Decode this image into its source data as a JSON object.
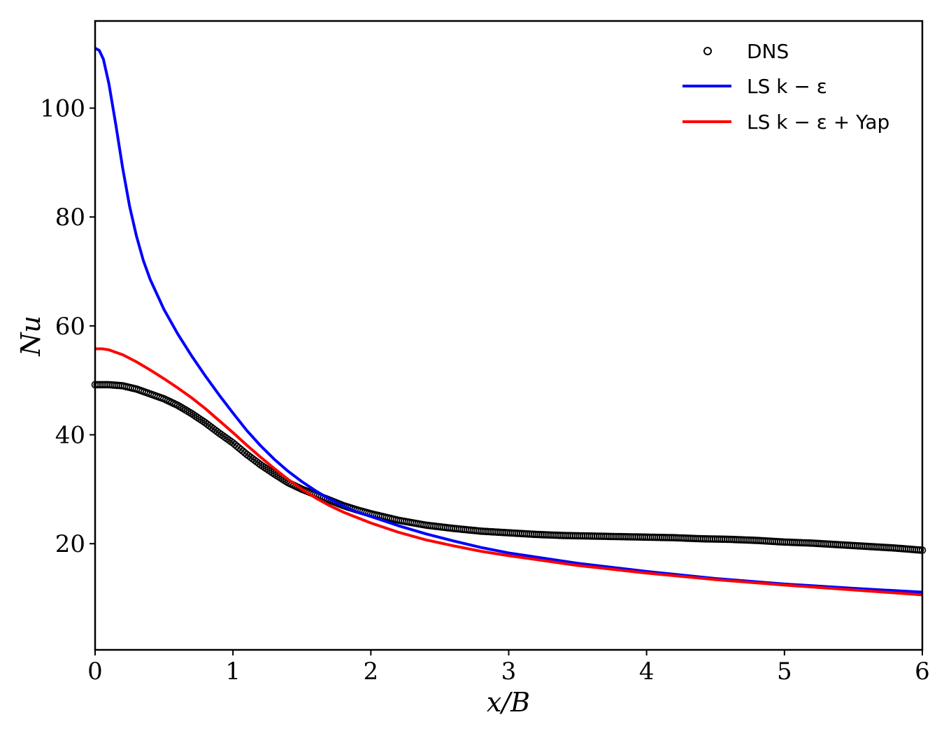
{
  "chart_data": {
    "type": "line",
    "xlabel": "x/B",
    "ylabel": "Nu",
    "xlim": [
      0,
      6
    ],
    "ylim": [
      0.5,
      116
    ],
    "x_ticks": [
      0,
      1,
      2,
      3,
      4,
      5,
      6
    ],
    "y_ticks": [
      20,
      40,
      60,
      80,
      100
    ],
    "grid": false,
    "legend_position": "top-right",
    "series": [
      {
        "name": "DNS",
        "style": "markers",
        "marker": "open-circle",
        "color": "#000000",
        "x": [
          0.0,
          0.1,
          0.2,
          0.3,
          0.4,
          0.5,
          0.6,
          0.7,
          0.8,
          0.9,
          1.0,
          1.1,
          1.2,
          1.3,
          1.4,
          1.5,
          1.6,
          1.7,
          1.8,
          1.9,
          2.0,
          2.1,
          2.2,
          2.4,
          2.6,
          2.8,
          3.0,
          3.2,
          3.4,
          3.6,
          3.8,
          4.0,
          4.2,
          4.4,
          4.6,
          4.8,
          5.0,
          5.2,
          5.4,
          5.6,
          5.8,
          6.0
        ],
        "y": [
          49.2,
          49.2,
          49.0,
          48.4,
          47.5,
          46.6,
          45.4,
          43.9,
          42.2,
          40.3,
          38.5,
          36.4,
          34.5,
          32.8,
          31.2,
          30.0,
          29.0,
          28.0,
          27.0,
          26.2,
          25.5,
          24.9,
          24.3,
          23.4,
          22.8,
          22.3,
          22.0,
          21.7,
          21.5,
          21.4,
          21.3,
          21.2,
          21.1,
          20.9,
          20.8,
          20.6,
          20.3,
          20.1,
          19.8,
          19.5,
          19.2,
          18.8
        ]
      },
      {
        "name": "LS k − ε",
        "style": "line",
        "color": "#0000ff",
        "x": [
          0.0,
          0.03,
          0.06,
          0.1,
          0.15,
          0.2,
          0.25,
          0.3,
          0.35,
          0.4,
          0.5,
          0.6,
          0.7,
          0.8,
          0.9,
          1.0,
          1.1,
          1.2,
          1.3,
          1.4,
          1.5,
          1.6,
          1.7,
          1.8,
          1.9,
          2.0,
          2.2,
          2.4,
          2.6,
          2.8,
          3.0,
          3.5,
          4.0,
          4.5,
          5.0,
          5.5,
          6.0
        ],
        "y": [
          111.0,
          110.6,
          109.0,
          104.5,
          97.0,
          89.0,
          82.0,
          76.5,
          72.0,
          68.5,
          63.0,
          58.5,
          54.5,
          50.8,
          47.3,
          44.0,
          40.8,
          38.0,
          35.5,
          33.3,
          31.4,
          29.7,
          28.2,
          26.9,
          25.8,
          25.0,
          23.3,
          21.8,
          20.5,
          19.3,
          18.3,
          16.4,
          14.9,
          13.6,
          12.6,
          11.8,
          11.1
        ]
      },
      {
        "name": "LS k − ε + Yap",
        "style": "line",
        "color": "#ff0000",
        "x": [
          0.0,
          0.05,
          0.1,
          0.2,
          0.3,
          0.4,
          0.5,
          0.6,
          0.7,
          0.8,
          0.9,
          1.0,
          1.1,
          1.2,
          1.3,
          1.4,
          1.5,
          1.6,
          1.7,
          1.8,
          1.9,
          2.0,
          2.2,
          2.4,
          2.6,
          2.8,
          3.0,
          3.5,
          4.0,
          4.5,
          5.0,
          5.5,
          6.0
        ],
        "y": [
          55.8,
          55.8,
          55.6,
          54.7,
          53.4,
          51.9,
          50.3,
          48.6,
          46.8,
          44.8,
          42.6,
          40.4,
          38.1,
          35.9,
          33.8,
          31.8,
          30.0,
          28.4,
          27.0,
          25.8,
          24.8,
          23.8,
          22.1,
          20.7,
          19.6,
          18.6,
          17.8,
          16.0,
          14.6,
          13.4,
          12.4,
          11.5,
          10.6
        ]
      }
    ]
  }
}
